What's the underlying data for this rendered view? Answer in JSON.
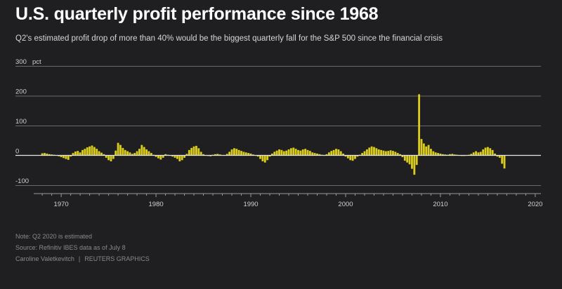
{
  "header": {
    "title": "U.S. quarterly profit performance since 1968",
    "subtitle": "Q2's estimated profit drop of more than 40% would be the biggest quarterly fall for the S&P 500 since the financial crisis"
  },
  "footer": {
    "note": "Note: Q2 2020 is estimated",
    "source": "Source: Refinitiv IBES data as of July 8",
    "author": "Caroline Valetkevitch",
    "brand": "REUTERS GRAPHICS"
  },
  "colors": {
    "bar": "#d9cc1d",
    "background": "#1f1e21",
    "grid": "#6a6a6a"
  },
  "chart_data": {
    "type": "bar",
    "unit_label": "pct",
    "x_start": 1968.0,
    "x_step": 0.25,
    "xlim": [
      1967.25,
      2020.6
    ],
    "ylim": [
      -100,
      300
    ],
    "y_ticks": [
      -100,
      0,
      100,
      200,
      300
    ],
    "x_ticks": [
      1970,
      1980,
      1990,
      2000,
      2010,
      2020
    ],
    "grid": true,
    "values": [
      7,
      8,
      6,
      4,
      3,
      2,
      0,
      -3,
      -6,
      -9,
      -12,
      -15,
      -4,
      8,
      13,
      15,
      10,
      18,
      22,
      27,
      30,
      33,
      28,
      22,
      14,
      9,
      4,
      -8,
      -16,
      -20,
      -12,
      16,
      42,
      35,
      25,
      18,
      14,
      10,
      5,
      8,
      14,
      22,
      35,
      28,
      20,
      14,
      8,
      2,
      -5,
      -10,
      -14,
      -8,
      4,
      2,
      0,
      -4,
      -8,
      -12,
      -20,
      -16,
      -8,
      5,
      18,
      25,
      30,
      32,
      24,
      12,
      4,
      0,
      -2,
      -3,
      2,
      4,
      5,
      3,
      1,
      0,
      5,
      12,
      20,
      24,
      22,
      18,
      15,
      12,
      10,
      8,
      6,
      3,
      0,
      -4,
      -12,
      -20,
      -24,
      -16,
      -4,
      6,
      12,
      16,
      20,
      18,
      14,
      16,
      20,
      24,
      26,
      22,
      18,
      16,
      20,
      22,
      18,
      15,
      10,
      8,
      6,
      4,
      2,
      0,
      4,
      10,
      15,
      18,
      22,
      20,
      14,
      6,
      -4,
      -10,
      -16,
      -18,
      -12,
      -4,
      2,
      8,
      14,
      20,
      26,
      30,
      28,
      24,
      20,
      18,
      16,
      14,
      15,
      17,
      15,
      12,
      8,
      4,
      -6,
      -18,
      -24,
      -30,
      -45,
      -65,
      -32,
      205,
      55,
      40,
      30,
      35,
      22,
      14,
      10,
      8,
      6,
      4,
      3,
      2,
      4,
      5,
      3,
      2,
      0,
      -2,
      -2,
      -1,
      2,
      5,
      10,
      14,
      10,
      12,
      20,
      26,
      28,
      24,
      18,
      6,
      -4,
      -8,
      -28,
      -44
    ]
  }
}
